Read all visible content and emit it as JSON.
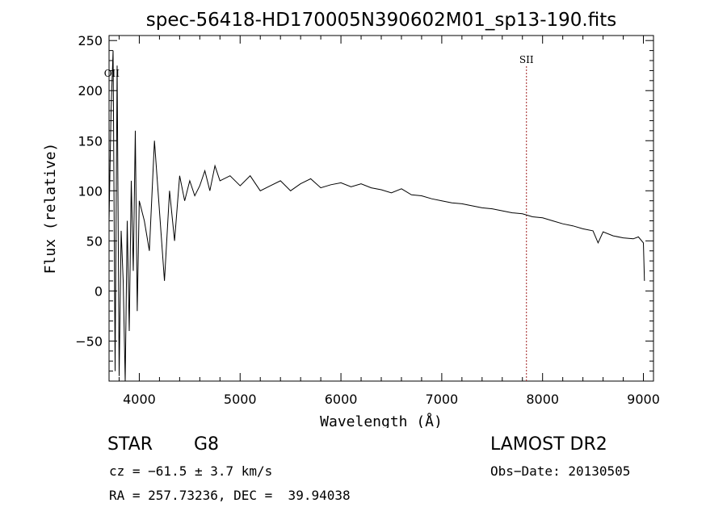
{
  "chart_data": {
    "type": "line",
    "title": "spec-56418-HD170005N390602M01_sp13-190.fits",
    "xlabel": "Wavelength (Å)",
    "ylabel": "Flux (relative)",
    "xlim": [
      3700,
      9100
    ],
    "ylim": [
      -90,
      255
    ],
    "xticks": [
      4000,
      5000,
      6000,
      7000,
      8000,
      9000
    ],
    "yticks": [
      -50,
      0,
      50,
      100,
      150,
      200,
      250
    ],
    "grid": false,
    "series": [
      {
        "x": [
          3700,
          3720,
          3740,
          3760,
          3780,
          3800,
          3820,
          3840,
          3860,
          3880,
          3900,
          3920,
          3940,
          3960,
          3980,
          4000,
          4050,
          4100,
          4150,
          4200,
          4250,
          4300,
          4350,
          4400,
          4450,
          4500,
          4550,
          4600,
          4650,
          4700,
          4750,
          4800,
          4900,
          5000,
          5100,
          5200,
          5300,
          5400,
          5500,
          5600,
          5700,
          5800,
          5900,
          6000,
          6100,
          6200,
          6300,
          6400,
          6500,
          6600,
          6700,
          6800,
          6900,
          7000,
          7100,
          7200,
          7300,
          7400,
          7500,
          7600,
          7700,
          7800,
          7900,
          8000,
          8100,
          8200,
          8300,
          8400,
          8500,
          8550,
          8600,
          8700,
          8800,
          8900,
          8950,
          9000,
          9010
        ],
        "y": [
          70,
          180,
          240,
          -80,
          225,
          -85,
          60,
          10,
          -90,
          70,
          -40,
          110,
          20,
          160,
          -20,
          90,
          70,
          40,
          150,
          80,
          10,
          100,
          50,
          115,
          90,
          110,
          95,
          105,
          120,
          100,
          125,
          110,
          115,
          105,
          115,
          100,
          105,
          110,
          100,
          107,
          112,
          103,
          106,
          108,
          104,
          107,
          103,
          101,
          98,
          102,
          96,
          95,
          92,
          90,
          88,
          87,
          85,
          83,
          82,
          80,
          78,
          77,
          74,
          73,
          70,
          67,
          65,
          62,
          60,
          48,
          59,
          55,
          53,
          52,
          54,
          48,
          10
        ]
      }
    ],
    "annotations": [
      {
        "label": "OII",
        "x": 3727
      },
      {
        "label": "SII",
        "x": 7840
      }
    ],
    "colors": {
      "spectrum": "#000000",
      "line_marker": "#a02020"
    }
  },
  "info": {
    "object_type": "STAR",
    "subclass": "G8",
    "survey": "LAMOST DR2",
    "cz": "cz = −61.5 ± 3.7 km/s",
    "obs_date": "Obs−Date: 20130505",
    "coords": "RA = 257.73236, DEC =  39.94038"
  }
}
